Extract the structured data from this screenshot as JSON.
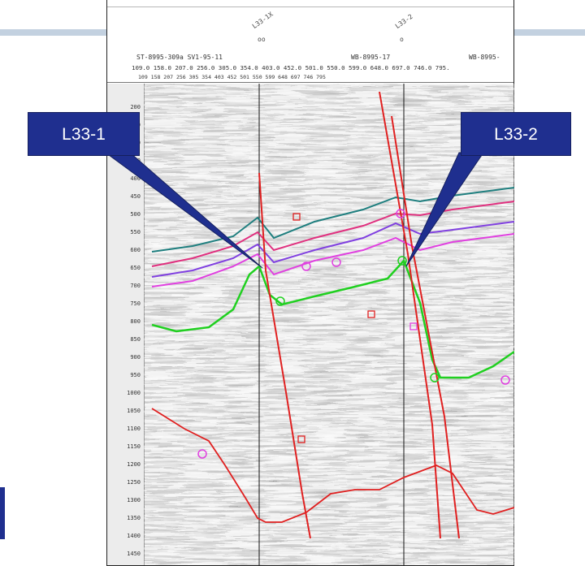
{
  "header": {
    "well_names": [
      "ST-8995-309a SV1-95-11",
      "WB-8995-17",
      "WB-8995-"
    ],
    "line1": "109.0 158.0 207.0 256.0 305.0 354.0 403.0 452.0 501.0 550.0 599.0 648.0 697.0 746.0 795.",
    "line2": "109  158  207  256  305  354  403  452  501  550  599  648  697  746  795",
    "well_tops": [
      "L33-1X",
      "L33-2"
    ],
    "well_marks": [
      "oo",
      "o"
    ]
  },
  "depth_ticks": [
    "200",
    "250",
    "300",
    "350",
    "400",
    "450",
    "500",
    "550",
    "600",
    "650",
    "700",
    "750",
    "800",
    "850",
    "900",
    "950",
    "1000",
    "1050",
    "1100",
    "1150",
    "1200",
    "1250",
    "1300",
    "1350",
    "1400",
    "1450"
  ],
  "callouts": [
    {
      "label": "L33-1"
    },
    {
      "label": "L33-2"
    }
  ],
  "colors": {
    "callout_bg": "#1f2f8f",
    "horizon_teal": "#1f7f7f",
    "horizon_pink": "#e0307f",
    "horizon_purple": "#8040e0",
    "horizon_magenta": "#e040e0",
    "horizon_green": "#20d020",
    "fault_red": "#e02020"
  }
}
